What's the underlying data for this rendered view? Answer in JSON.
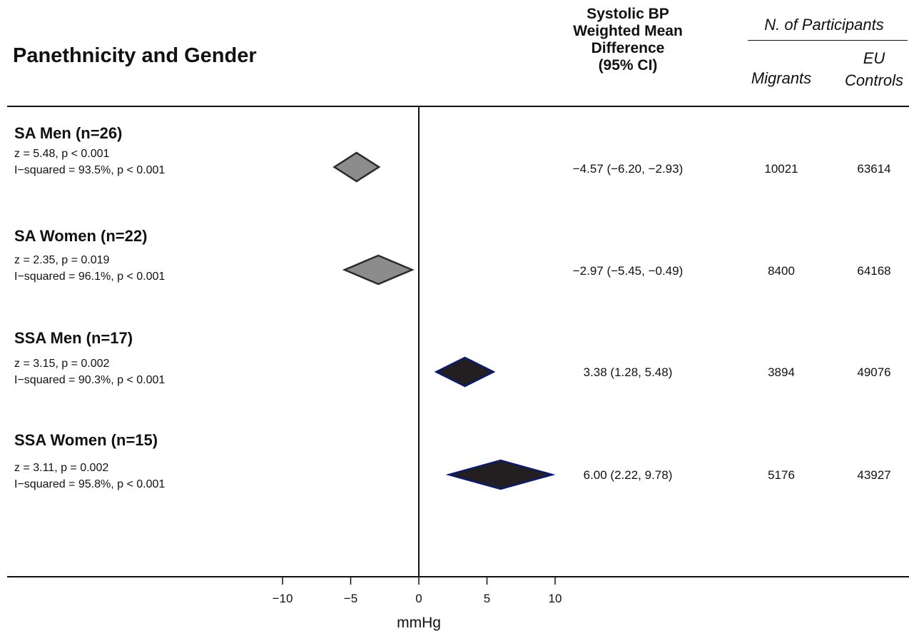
{
  "header": {
    "title": "Panethnicity and Gender",
    "effect_line1": "Systolic BP",
    "effect_line2": "Weighted Mean",
    "effect_line3": "Difference",
    "effect_line4": "(95% CI)",
    "participants": "N. of Participants",
    "migrants": "Migrants",
    "eu_line1": "EU",
    "eu_line2": "Controls"
  },
  "rows": [
    {
      "label": "SA Men (n=26)",
      "z": "z = 5.48, p < 0.001",
      "i2": "I−squared = 93.5%, p < 0.001",
      "estimate": "−4.57 (−6.20, −2.93)",
      "migrants": "10021",
      "controls": "63614"
    },
    {
      "label": "SA Women (n=22)",
      "z": "z = 2.35, p = 0.019",
      "i2": "I−squared = 96.1%, p < 0.001",
      "estimate": "−2.97 (−5.45, −0.49)",
      "migrants": "8400",
      "controls": "64168"
    },
    {
      "label": "SSA Men (n=17)",
      "z": "z = 3.15, p = 0.002",
      "i2": "I−squared = 90.3%, p < 0.001",
      "estimate": "3.38 (1.28, 5.48)",
      "migrants": "3894",
      "controls": "49076"
    },
    {
      "label": "SSA Women (n=15)",
      "z": "z = 3.11, p = 0.002",
      "i2": "I−squared = 95.8%, p < 0.001",
      "estimate": "6.00 (2.22, 9.78)",
      "migrants": "5176",
      "controls": "43927"
    }
  ],
  "chart_data": {
    "type": "forest",
    "xlabel": "mmHg",
    "xlim": [
      -10,
      10
    ],
    "xticks": [
      -10,
      -5,
      0,
      5,
      10
    ],
    "xtick_labels": [
      "−10",
      "−5",
      "0",
      "5",
      "10"
    ],
    "reference_line": 0,
    "series": [
      {
        "name": "SA Men (n=26)",
        "estimate": -4.57,
        "ci_low": -6.2,
        "ci_high": -2.93,
        "color": "#8c8c8c"
      },
      {
        "name": "SA Women (n=22)",
        "estimate": -2.97,
        "ci_low": -5.45,
        "ci_high": -0.49,
        "color": "#8c8c8c"
      },
      {
        "name": "SSA Men (n=17)",
        "estimate": 3.38,
        "ci_low": 1.28,
        "ci_high": 5.48,
        "color": "#231f20"
      },
      {
        "name": "SSA Women (n=15)",
        "estimate": 6.0,
        "ci_low": 2.22,
        "ci_high": 9.78,
        "color": "#231f20"
      }
    ],
    "outline_colors": [
      "#2a2a2a",
      "#2a2a2a",
      "#0a1a6e",
      "#0a1a6e"
    ]
  }
}
